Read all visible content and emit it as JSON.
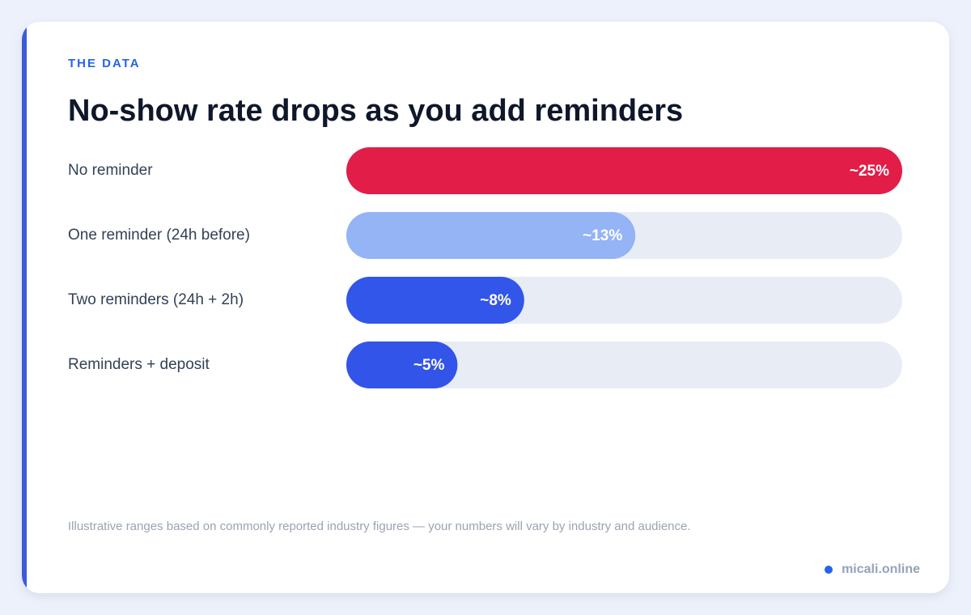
{
  "chart_data": {
    "type": "bar",
    "eyebrow": "THE DATA",
    "title": "No-show rate drops as you add reminders",
    "categories": [
      "No reminder",
      "One reminder (24h before)",
      "Two reminders (24h + 2h)",
      "Reminders + deposit"
    ],
    "values": [
      25,
      13,
      8,
      5
    ],
    "value_labels": [
      "~25%",
      "~13%",
      "~8%",
      "~5%"
    ],
    "colors": [
      "#e11d48",
      "#94b4f5",
      "#3256e9",
      "#3354e9"
    ],
    "track_color": "#e8edf5",
    "xlim": [
      0,
      25
    ],
    "footnote": "Illustrative ranges based on commonly reported industry figures — your numbers will vary by industry and audience.",
    "brand": "micali.online"
  }
}
